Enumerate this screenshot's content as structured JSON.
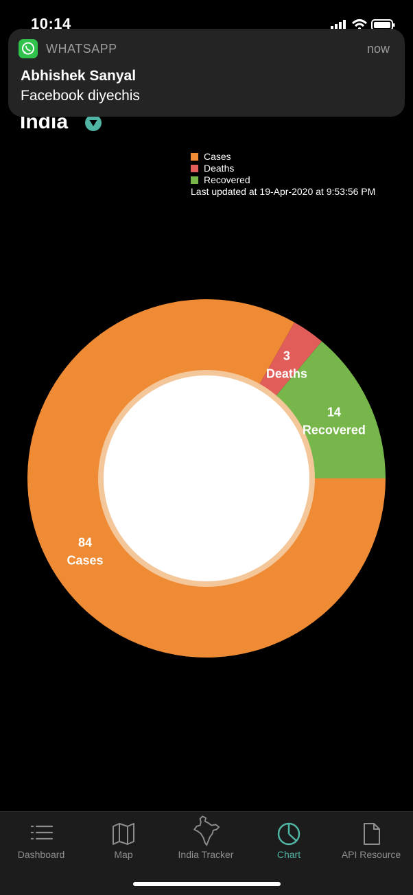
{
  "status_bar": {
    "time": "10:14"
  },
  "notification": {
    "app_icon": "whatsapp-icon",
    "app_name": "WHATSAPP",
    "time": "now",
    "title": "Abhishek Sanyal",
    "body": "Facebook diyechis"
  },
  "header": {
    "country": "India",
    "dropdown_icon": "chevron-down-icon"
  },
  "chart_data": {
    "type": "pie",
    "categories": [
      "Cases",
      "Deaths",
      "Recovered"
    ],
    "values": [
      84,
      3,
      14
    ],
    "colors": [
      "#ef8b35",
      "#e15d5a",
      "#77b64b"
    ],
    "legend": [
      "Cases",
      "Deaths",
      "Recovered"
    ],
    "legend_placement": "top-right",
    "last_updated": "Last updated at 19-Apr-2020 at 9:53:56 PM"
  },
  "tabs": [
    {
      "label": "Dashboard",
      "icon": "list-icon",
      "active": false
    },
    {
      "label": "Map",
      "icon": "map-icon",
      "active": false
    },
    {
      "label": "India Tracker",
      "icon": "india-map-icon",
      "active": false
    },
    {
      "label": "Chart",
      "icon": "pie-chart-icon",
      "active": true
    },
    {
      "label": "API Resource",
      "icon": "document-icon",
      "active": false
    }
  ],
  "colors": {
    "accent": "#4fb4a3",
    "background": "#000000",
    "tab_bar": "#1c1c1c"
  }
}
